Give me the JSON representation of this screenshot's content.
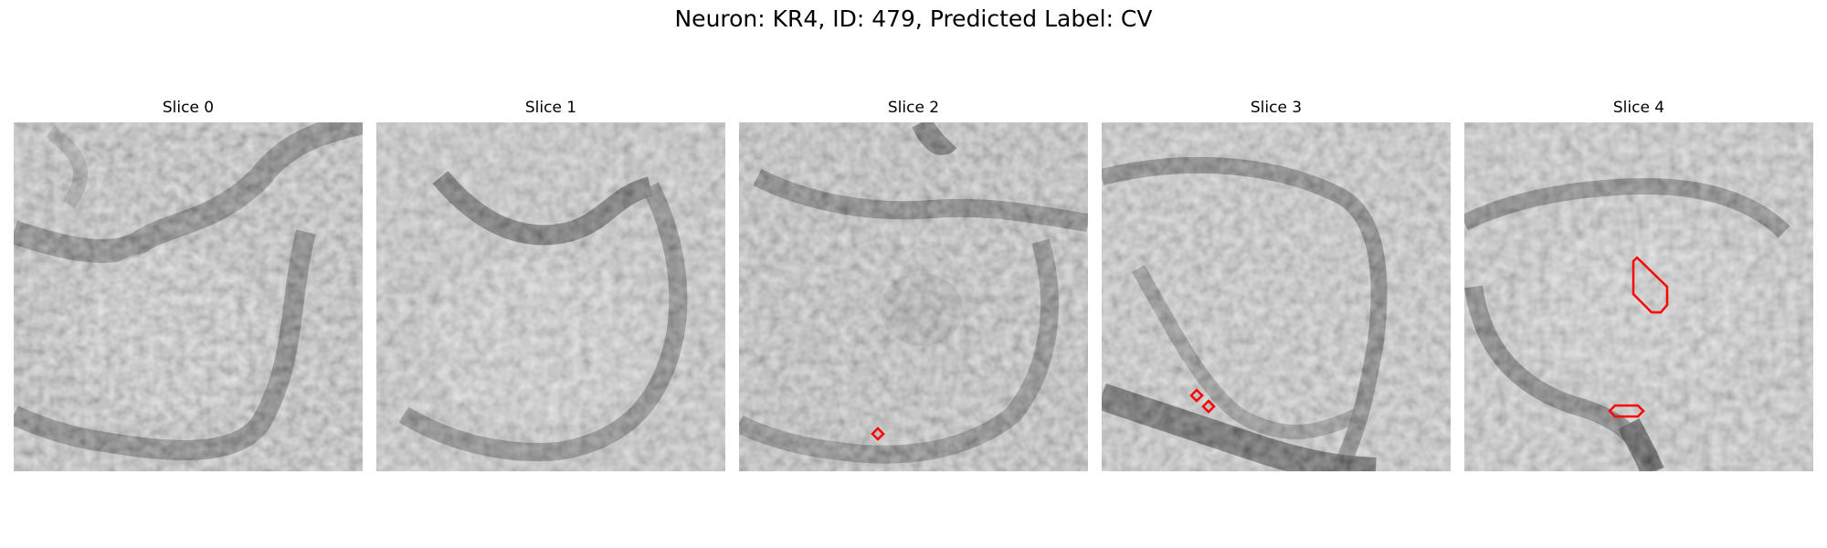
{
  "figure": {
    "title": "Neuron: KR4, ID: 479, Predicted Label: CV"
  },
  "panels": [
    {
      "title": "Slice 0"
    },
    {
      "title": "Slice 1"
    },
    {
      "title": "Slice 2"
    },
    {
      "title": "Slice 3"
    },
    {
      "title": "Slice 4"
    }
  ],
  "colors": {
    "contour": "#ff0000",
    "background": "#ffffff"
  }
}
